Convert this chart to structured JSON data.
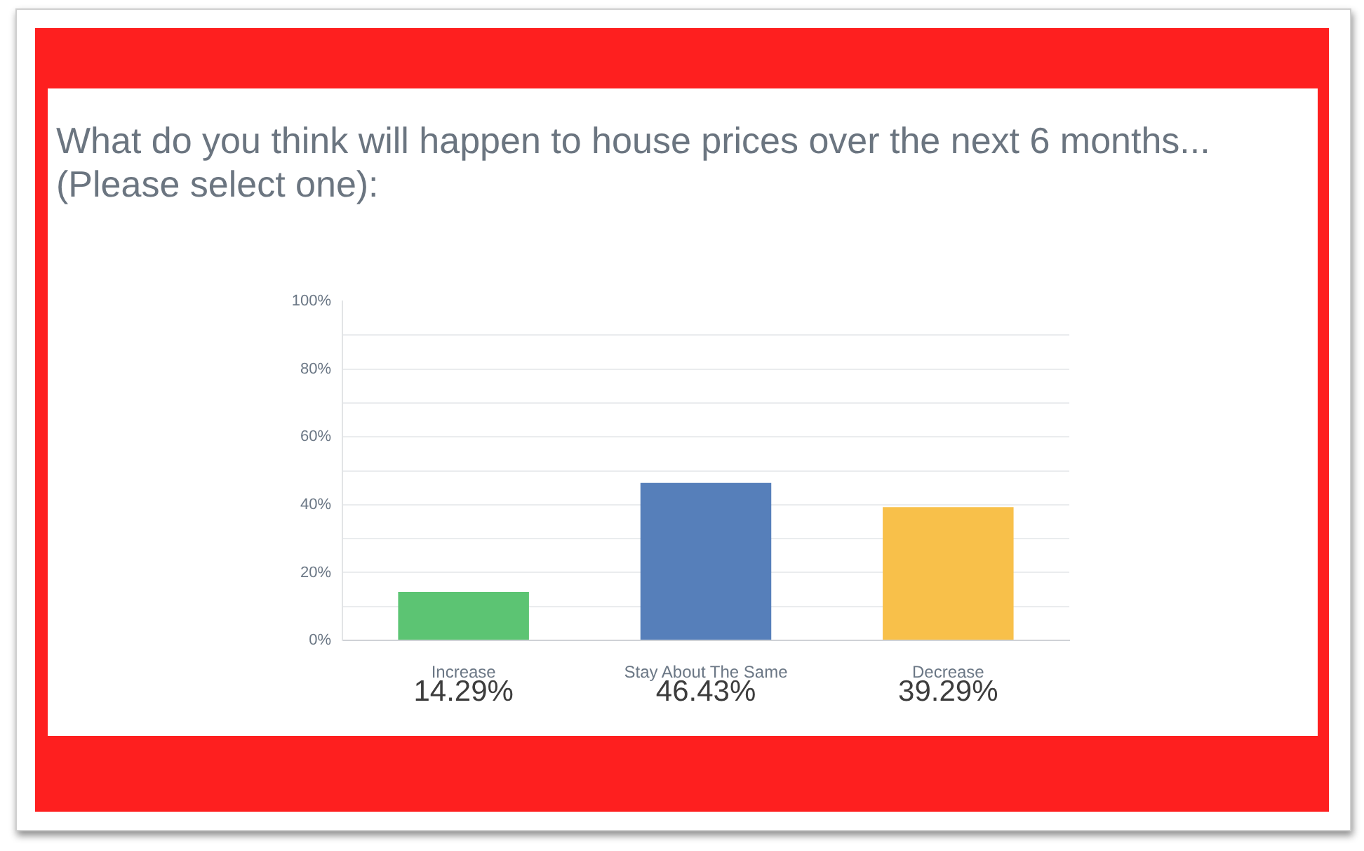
{
  "chart_data": {
    "type": "bar",
    "title": "What do you think will happen to house prices over the next 6 months... (Please select one):",
    "categories": [
      "Increase",
      "Stay About The Same",
      "Decrease"
    ],
    "values": [
      14.29,
      46.43,
      39.29
    ],
    "colors": [
      "#5cc473",
      "#567fba",
      "#f8c04a"
    ],
    "value_labels": [
      "14.29%",
      "46.43%",
      "39.29%"
    ],
    "ylim": [
      0,
      100
    ],
    "yticks": [
      {
        "value": 0,
        "label": "0%"
      },
      {
        "value": 10,
        "label": null
      },
      {
        "value": 20,
        "label": "20%"
      },
      {
        "value": 30,
        "label": null
      },
      {
        "value": 40,
        "label": "40%"
      },
      {
        "value": 50,
        "label": null
      },
      {
        "value": 60,
        "label": "60%"
      },
      {
        "value": 70,
        "label": null
      },
      {
        "value": 80,
        "label": "80%"
      },
      {
        "value": 90,
        "label": null
      },
      {
        "value": 100,
        "label": "100%"
      }
    ],
    "grid": "y"
  }
}
